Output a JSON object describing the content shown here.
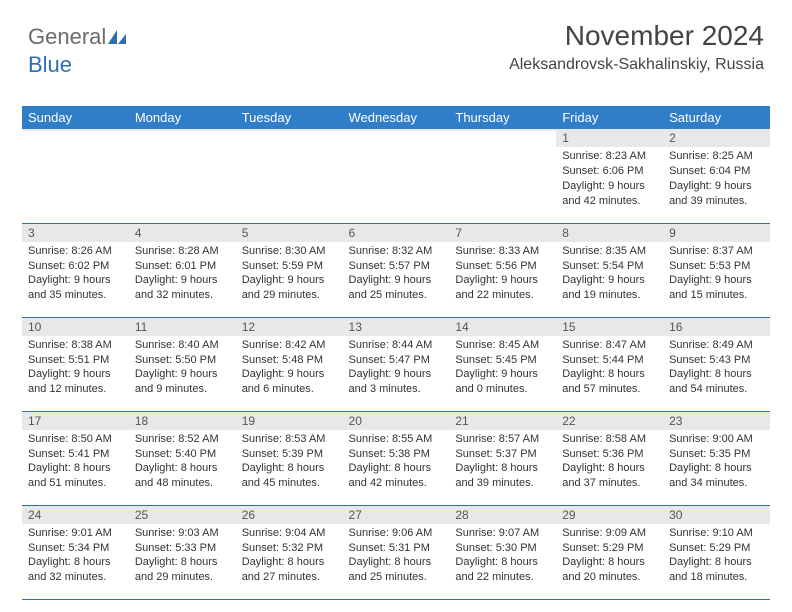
{
  "logo": {
    "text_gray": "General",
    "text_blue": "Blue"
  },
  "title": "November 2024",
  "location": "Aleksandrovsk-Sakhalinskiy, Russia",
  "colors": {
    "header_bg": "#2f7ec7",
    "header_fg": "#ffffff",
    "daynum_bg": "#e8e8e8",
    "border": "#2f6fb0",
    "logo_gray": "#6b6b6b",
    "logo_blue": "#2f6fb0"
  },
  "weekdays": [
    "Sunday",
    "Monday",
    "Tuesday",
    "Wednesday",
    "Thursday",
    "Friday",
    "Saturday"
  ],
  "weeks": [
    [
      {
        "n": "",
        "lines": [
          "",
          "",
          ""
        ]
      },
      {
        "n": "",
        "lines": [
          "",
          "",
          ""
        ]
      },
      {
        "n": "",
        "lines": [
          "",
          "",
          ""
        ]
      },
      {
        "n": "",
        "lines": [
          "",
          "",
          ""
        ]
      },
      {
        "n": "",
        "lines": [
          "",
          "",
          ""
        ]
      },
      {
        "n": "1",
        "lines": [
          "Sunrise: 8:23 AM",
          "Sunset: 6:06 PM",
          "Daylight: 9 hours and 42 minutes."
        ]
      },
      {
        "n": "2",
        "lines": [
          "Sunrise: 8:25 AM",
          "Sunset: 6:04 PM",
          "Daylight: 9 hours and 39 minutes."
        ]
      }
    ],
    [
      {
        "n": "3",
        "lines": [
          "Sunrise: 8:26 AM",
          "Sunset: 6:02 PM",
          "Daylight: 9 hours and 35 minutes."
        ]
      },
      {
        "n": "4",
        "lines": [
          "Sunrise: 8:28 AM",
          "Sunset: 6:01 PM",
          "Daylight: 9 hours and 32 minutes."
        ]
      },
      {
        "n": "5",
        "lines": [
          "Sunrise: 8:30 AM",
          "Sunset: 5:59 PM",
          "Daylight: 9 hours and 29 minutes."
        ]
      },
      {
        "n": "6",
        "lines": [
          "Sunrise: 8:32 AM",
          "Sunset: 5:57 PM",
          "Daylight: 9 hours and 25 minutes."
        ]
      },
      {
        "n": "7",
        "lines": [
          "Sunrise: 8:33 AM",
          "Sunset: 5:56 PM",
          "Daylight: 9 hours and 22 minutes."
        ]
      },
      {
        "n": "8",
        "lines": [
          "Sunrise: 8:35 AM",
          "Sunset: 5:54 PM",
          "Daylight: 9 hours and 19 minutes."
        ]
      },
      {
        "n": "9",
        "lines": [
          "Sunrise: 8:37 AM",
          "Sunset: 5:53 PM",
          "Daylight: 9 hours and 15 minutes."
        ]
      }
    ],
    [
      {
        "n": "10",
        "lines": [
          "Sunrise: 8:38 AM",
          "Sunset: 5:51 PM",
          "Daylight: 9 hours and 12 minutes."
        ]
      },
      {
        "n": "11",
        "lines": [
          "Sunrise: 8:40 AM",
          "Sunset: 5:50 PM",
          "Daylight: 9 hours and 9 minutes."
        ]
      },
      {
        "n": "12",
        "lines": [
          "Sunrise: 8:42 AM",
          "Sunset: 5:48 PM",
          "Daylight: 9 hours and 6 minutes."
        ]
      },
      {
        "n": "13",
        "lines": [
          "Sunrise: 8:44 AM",
          "Sunset: 5:47 PM",
          "Daylight: 9 hours and 3 minutes."
        ]
      },
      {
        "n": "14",
        "lines": [
          "Sunrise: 8:45 AM",
          "Sunset: 5:45 PM",
          "Daylight: 9 hours and 0 minutes."
        ]
      },
      {
        "n": "15",
        "lines": [
          "Sunrise: 8:47 AM",
          "Sunset: 5:44 PM",
          "Daylight: 8 hours and 57 minutes."
        ]
      },
      {
        "n": "16",
        "lines": [
          "Sunrise: 8:49 AM",
          "Sunset: 5:43 PM",
          "Daylight: 8 hours and 54 minutes."
        ]
      }
    ],
    [
      {
        "n": "17",
        "lines": [
          "Sunrise: 8:50 AM",
          "Sunset: 5:41 PM",
          "Daylight: 8 hours and 51 minutes."
        ]
      },
      {
        "n": "18",
        "lines": [
          "Sunrise: 8:52 AM",
          "Sunset: 5:40 PM",
          "Daylight: 8 hours and 48 minutes."
        ]
      },
      {
        "n": "19",
        "lines": [
          "Sunrise: 8:53 AM",
          "Sunset: 5:39 PM",
          "Daylight: 8 hours and 45 minutes."
        ]
      },
      {
        "n": "20",
        "lines": [
          "Sunrise: 8:55 AM",
          "Sunset: 5:38 PM",
          "Daylight: 8 hours and 42 minutes."
        ]
      },
      {
        "n": "21",
        "lines": [
          "Sunrise: 8:57 AM",
          "Sunset: 5:37 PM",
          "Daylight: 8 hours and 39 minutes."
        ]
      },
      {
        "n": "22",
        "lines": [
          "Sunrise: 8:58 AM",
          "Sunset: 5:36 PM",
          "Daylight: 8 hours and 37 minutes."
        ]
      },
      {
        "n": "23",
        "lines": [
          "Sunrise: 9:00 AM",
          "Sunset: 5:35 PM",
          "Daylight: 8 hours and 34 minutes."
        ]
      }
    ],
    [
      {
        "n": "24",
        "lines": [
          "Sunrise: 9:01 AM",
          "Sunset: 5:34 PM",
          "Daylight: 8 hours and 32 minutes."
        ]
      },
      {
        "n": "25",
        "lines": [
          "Sunrise: 9:03 AM",
          "Sunset: 5:33 PM",
          "Daylight: 8 hours and 29 minutes."
        ]
      },
      {
        "n": "26",
        "lines": [
          "Sunrise: 9:04 AM",
          "Sunset: 5:32 PM",
          "Daylight: 8 hours and 27 minutes."
        ]
      },
      {
        "n": "27",
        "lines": [
          "Sunrise: 9:06 AM",
          "Sunset: 5:31 PM",
          "Daylight: 8 hours and 25 minutes."
        ]
      },
      {
        "n": "28",
        "lines": [
          "Sunrise: 9:07 AM",
          "Sunset: 5:30 PM",
          "Daylight: 8 hours and 22 minutes."
        ]
      },
      {
        "n": "29",
        "lines": [
          "Sunrise: 9:09 AM",
          "Sunset: 5:29 PM",
          "Daylight: 8 hours and 20 minutes."
        ]
      },
      {
        "n": "30",
        "lines": [
          "Sunrise: 9:10 AM",
          "Sunset: 5:29 PM",
          "Daylight: 8 hours and 18 minutes."
        ]
      }
    ]
  ]
}
